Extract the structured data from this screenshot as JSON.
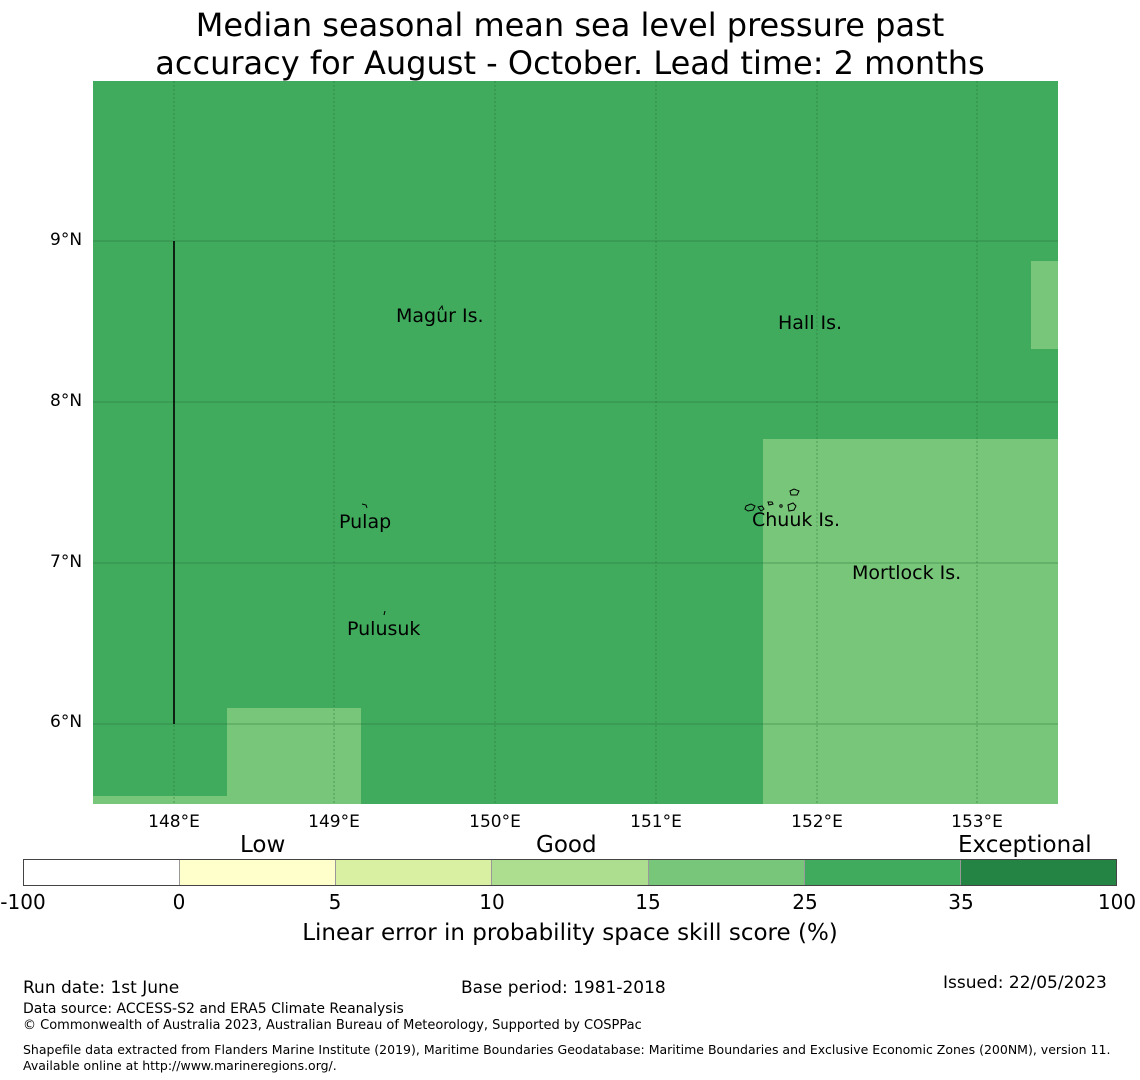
{
  "title": {
    "line1": "Median seasonal mean sea level pressure past",
    "line2": "accuracy for August - October. Lead time: 2 months"
  },
  "map": {
    "extent": {
      "lon": [
        147.5,
        153.5
      ],
      "lat": [
        5.5,
        10.0
      ]
    },
    "background_color": "#41ab5d",
    "patch_color": "#78c679",
    "lat_labels": [
      "9°N",
      "8°N",
      "7°N",
      "6°N"
    ],
    "lon_labels": [
      "148°E",
      "149°E",
      "150°E",
      "151°E",
      "152°E",
      "153°E"
    ],
    "place_labels": [
      "Magur Is.",
      "Hall Is.",
      "Pulap",
      "Chuuk Is.",
      "Mortlock Is.",
      "Pulusuk"
    ]
  },
  "colorbar": {
    "categories": [
      "Low",
      "Good",
      "Exceptional"
    ],
    "colors": [
      "#ffffff",
      "#ffffcc",
      "#d9f0a3",
      "#addd8e",
      "#78c679",
      "#41ab5d",
      "#238443"
    ],
    "ticks": [
      "-100",
      "0",
      "5",
      "10",
      "15",
      "25",
      "35",
      "100"
    ],
    "label": "Linear error in probability space skill score (%)"
  },
  "footer": {
    "run_date": "Run date: 1st June",
    "base_period": "Base period: 1981-2018",
    "issued": "Issued: 22/05/2023",
    "data_source": "Data source: ACCESS-S2 and ERA5 Climate Reanalysis",
    "copyright": "© Commonwealth of Australia 2023, Australian Bureau of Meteorology, Supported by COSPPac",
    "shapefile": "Shapefile data extracted from Flanders Marine Institute (2019), Maritime Boundaries Geodatabase: Maritime Boundaries and Exclusive Economic Zones (200NM), version 11. Available online at http://www.marineregions.org/."
  }
}
